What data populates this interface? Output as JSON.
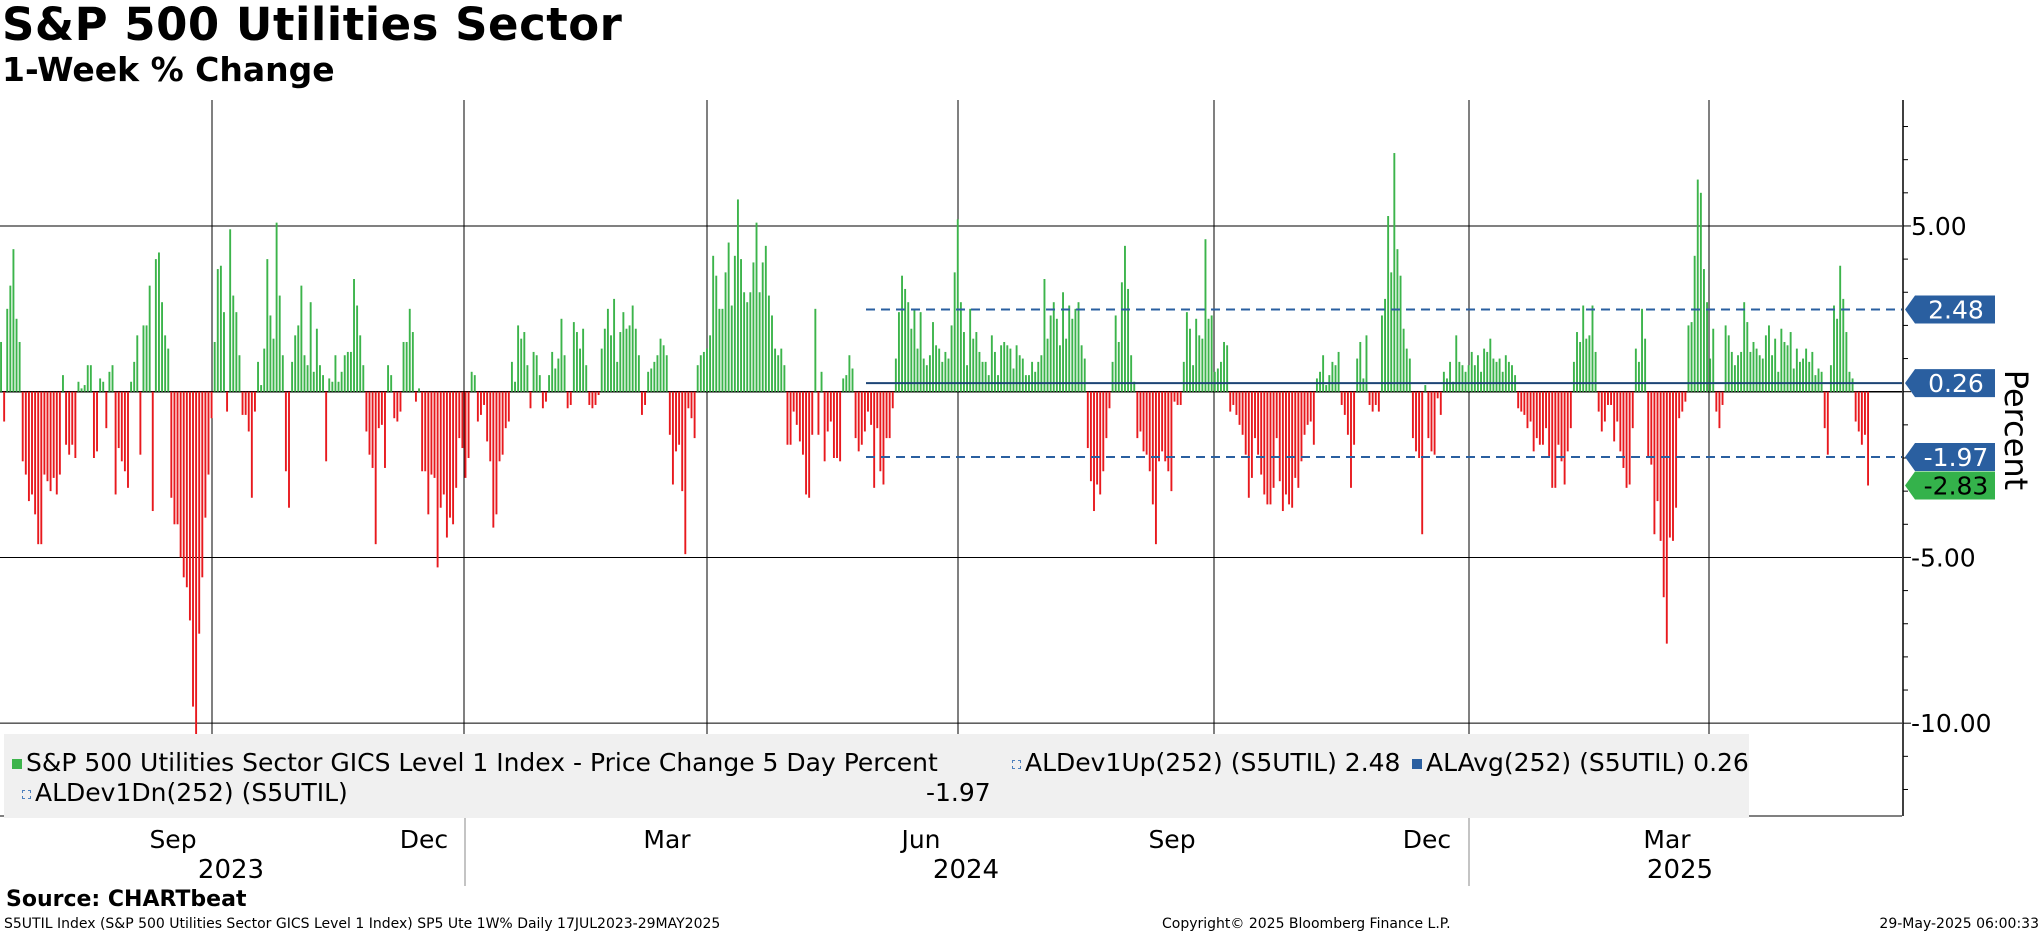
{
  "header": {
    "title": "S&P 500 Utilities Sector",
    "subtitle": "1-Week % Change"
  },
  "colors": {
    "up": "#3cb44b",
    "down": "#e8191e",
    "stat": "#2a5fa0",
    "latest": "#34b24b"
  },
  "chart_data": {
    "type": "bar",
    "title": "S&P 500 Utilities Sector",
    "subtitle": "1-Week % Change",
    "ylabel": "Percent",
    "ylim": [
      -12.8,
      8.8
    ],
    "yticks": [
      5,
      -5,
      -10
    ],
    "ytick_labels": [
      "5.00",
      "-5.00",
      "-10.00"
    ],
    "x_range": [
      "2023-07-17",
      "2025-05-29"
    ],
    "month_ticks": [
      "Sep",
      "Dec",
      "Mar",
      "Jun",
      "Sep",
      "Dec",
      "Mar"
    ],
    "year_labels": [
      "2023",
      "2024",
      "2025"
    ],
    "series": [
      {
        "name": "S&P 500 Utilities Sector GICS Level 1 Index - Price Change 5 Day Percent",
        "last": "-2.83",
        "values": [
          1.5,
          -0.9,
          2.5,
          3.2,
          4.3,
          2.2,
          1.5,
          -2.1,
          -2.5,
          -3.3,
          -3.1,
          -3.7,
          -4.6,
          -4.6,
          -2.5,
          -2.7,
          -3.0,
          -2.6,
          -3.1,
          -2.5,
          0.5,
          -1.6,
          -1.9,
          -1.6,
          -2.0,
          0.3,
          0.1,
          0.2,
          0.8,
          0.8,
          -2.0,
          -1.8,
          0.4,
          0.3,
          -1.1,
          0.6,
          0.8,
          -3.1,
          -1.7,
          -2.1,
          -2.4,
          -2.9,
          0.3,
          0.9,
          1.7,
          -1.9,
          2.0,
          2.0,
          3.2,
          -3.6,
          4.0,
          4.2,
          2.7,
          1.7,
          1.3,
          -3.2,
          -4.0,
          -4.0,
          -5.0,
          -5.6,
          -5.9,
          -6.9,
          -9.5,
          -11.0,
          -7.3,
          -5.6,
          -3.8,
          -2.5,
          -0.8,
          1.5,
          3.7,
          3.8,
          2.4,
          -0.6,
          4.9,
          2.9,
          2.4,
          1.1,
          -0.7,
          -0.7,
          -1.2,
          -3.2,
          -0.6,
          0.9,
          0.2,
          1.3,
          4.0,
          2.3,
          1.6,
          5.1,
          2.9,
          1.1,
          -2.4,
          -3.5,
          0.9,
          1.7,
          2.0,
          3.2,
          1.1,
          0.8,
          2.7,
          0.6,
          1.9,
          0.8,
          0.5,
          -2.1,
          0.4,
          0.3,
          1.1,
          0.3,
          0.6,
          1.1,
          1.2,
          1.2,
          3.4,
          2.6,
          1.7,
          0.8,
          -1.2,
          -1.9,
          -2.3,
          -4.6,
          -1.1,
          -1.0,
          -2.3,
          0.8,
          0.5,
          -0.8,
          -0.9,
          -0.6,
          1.5,
          1.5,
          2.5,
          1.8,
          -0.3,
          0.1,
          -2.4,
          -2.4,
          -3.7,
          -2.5,
          -2.6,
          -5.3,
          -3.5,
          -3.1,
          -4.4,
          -3.8,
          -4.0,
          -2.9,
          -1.4,
          -1.7,
          -2.6,
          -2.0,
          0.6,
          0.5,
          -0.9,
          -0.7,
          -0.4,
          -1.5,
          -2.1,
          -4.1,
          -3.7,
          -2.1,
          -1.9,
          -1.1,
          -0.9,
          0.9,
          0.3,
          2.0,
          1.6,
          1.8,
          0.8,
          -0.5,
          1.2,
          1.1,
          0.5,
          -0.5,
          -0.3,
          0.5,
          1.2,
          0.7,
          1.0,
          2.2,
          1.1,
          -0.5,
          -0.4,
          2.1,
          1.8,
          1.3,
          1.9,
          0.8,
          -0.4,
          -0.5,
          -0.4,
          -0.1,
          1.3,
          1.9,
          2.5,
          1.7,
          2.8,
          0.9,
          1.8,
          2.4,
          1.9,
          2.0,
          2.6,
          1.9,
          1.1,
          -0.7,
          -0.4,
          0.6,
          0.7,
          0.9,
          1.1,
          1.6,
          1.4,
          1.1,
          -1.3,
          -2.8,
          -1.8,
          -1.6,
          -3.0,
          -4.9,
          -0.5,
          -0.8,
          -1.4,
          0.8,
          1.1,
          1.2,
          1.3,
          1.7,
          4.1,
          3.5,
          2.5,
          2.5,
          3.6,
          4.5,
          2.6,
          4.1,
          5.8,
          4.0,
          3.0,
          2.7,
          3.0,
          3.9,
          5.1,
          3.0,
          3.9,
          4.4,
          2.9,
          2.3,
          1.3,
          1.1,
          1.3,
          0.8,
          -1.6,
          -1.6,
          -0.6,
          -1.0,
          -1.5,
          -1.9,
          -3.1,
          -3.2,
          -1.3,
          2.5,
          -1.3,
          0.6,
          -2.1,
          -1.2,
          -0.9,
          -2.0,
          -2.0,
          -2.1,
          0.4,
          0.5,
          1.1,
          0.7,
          -1.4,
          -1.8,
          -1.6,
          -1.2,
          -0.6,
          -1.0,
          -2.9,
          -1.1,
          -2.4,
          -2.8,
          -1.4,
          -1.4,
          -0.5,
          1.0,
          2.4,
          3.5,
          3.1,
          2.7,
          1.9,
          2.5,
          1.3,
          2.4,
          1.0,
          0.8,
          1.1,
          2.1,
          1.4,
          1.3,
          0.9,
          1.2,
          1.0,
          2.0,
          3.6,
          5.2,
          2.7,
          1.8,
          0.8,
          2.5,
          1.6,
          1.8,
          1.2,
          0.9,
          0.9,
          0.5,
          1.7,
          1.2,
          0.5,
          1.4,
          1.5,
          1.4,
          1.3,
          0.7,
          1.4,
          1.1,
          1.0,
          0.5,
          0.5,
          0.9,
          0.6,
          0.9,
          1.1,
          3.4,
          1.6,
          2.3,
          2.7,
          2.2,
          1.4,
          3.0,
          1.6,
          2.6,
          2.2,
          2.5,
          2.7,
          1.4,
          1.0,
          -1.7,
          -2.7,
          -3.6,
          -2.8,
          -3.1,
          -2.4,
          -1.4,
          -0.5,
          0.9,
          2.3,
          1.5,
          3.3,
          4.4,
          3.1,
          1.1,
          0.3,
          -1.4,
          -1.2,
          -1.8,
          -1.9,
          -2.4,
          -3.4,
          -4.6,
          -2.1,
          -1.8,
          -2.1,
          -2.4,
          -3.0,
          -0.3,
          -0.4,
          -0.4,
          0.9,
          2.4,
          1.9,
          0.8,
          2.2,
          1.7,
          1.6,
          4.6,
          2.2,
          2.3,
          0.6,
          0.7,
          0.9,
          1.5,
          1.4,
          -0.6,
          -0.4,
          -0.7,
          -1.0,
          -1.3,
          -1.9,
          -3.2,
          -2.6,
          -1.4,
          -1.9,
          -2.5,
          -3.1,
          -3.4,
          -3.4,
          -2.9,
          -1.4,
          -2.7,
          -3.6,
          -3.1,
          -3.4,
          -3.5,
          -2.6,
          -2.9,
          -2.1,
          -1.3,
          -1.0,
          -0.9,
          -1.6,
          0.4,
          0.6,
          1.1,
          0.2,
          0.5,
          0.9,
          0.8,
          1.2,
          -0.4,
          -0.7,
          -1.3,
          -2.9,
          -1.6,
          1.0,
          1.5,
          0.4,
          1.7,
          -0.4,
          -0.6,
          -0.4,
          -0.6,
          2.3,
          2.8,
          5.3,
          3.6,
          7.2,
          4.3,
          3.5,
          1.9,
          1.3,
          1.0,
          -1.4,
          -1.8,
          -2.0,
          -4.3,
          0.2,
          -1.4,
          -1.8,
          -1.9,
          -0.2,
          -0.7,
          0.6,
          0.4,
          0.9,
          0.3,
          1.7,
          0.9,
          0.8,
          0.6,
          0.8,
          1.2,
          0.8,
          1.1,
          0.6,
          1.3,
          1.2,
          1.6,
          1.0,
          0.9,
          1.0,
          0.6,
          1.1,
          0.9,
          0.8,
          0.5,
          -0.5,
          -0.6,
          -0.7,
          -1.1,
          -0.9,
          -1.8,
          -1.4,
          -1.6,
          -1.6,
          -1.1,
          -2.0,
          -2.9,
          -2.9,
          -1.6,
          -2.1,
          -2.8,
          -1.8,
          -1.1,
          0.9,
          1.8,
          1.5,
          2.6,
          1.6,
          1.7,
          2.6,
          1.2,
          -0.6,
          -1.2,
          -0.9,
          -0.4,
          -0.4,
          -1.5,
          -0.9,
          -1.8,
          -2.3,
          -2.9,
          -2.8,
          -1.1,
          1.3,
          0.9,
          2.5,
          1.6,
          -2.0,
          -2.2,
          -4.3,
          -3.3,
          -4.5,
          -6.2,
          -7.6,
          -4.4,
          -4.5,
          -3.5,
          -0.8,
          -0.6,
          -0.3,
          2.0,
          2.1,
          4.1,
          6.4,
          6.0,
          3.7,
          2.7,
          1.0,
          1.9,
          -0.6,
          -1.1,
          -0.4,
          2.0,
          1.7,
          1.2,
          0.8,
          1.1,
          1.2,
          2.7,
          2.1,
          1.2,
          1.5,
          1.3,
          1.1,
          1.0,
          1.7,
          2.0,
          1.1,
          1.6,
          0.6,
          1.9,
          1.5,
          1.4,
          1.8,
          0.7,
          1.3,
          0.9,
          1.0,
          1.3,
          0.9,
          1.2,
          0.5,
          0.7,
          0.6,
          -1.1,
          -1.9,
          0.8,
          2.6,
          2.2,
          3.8,
          2.8,
          1.8,
          0.6,
          0.4,
          -0.9,
          -1.2,
          -1.6,
          -1.3,
          -2.83
        ]
      },
      {
        "name": "ALDev1Up(252) (S5UTIL)",
        "value": 2.48,
        "label": "2.48"
      },
      {
        "name": "ALAvg(252) (S5UTIL)",
        "value": 0.26,
        "label": "0.26"
      },
      {
        "name": "ALDev1Dn(252) (S5UTIL)",
        "value": -1.97,
        "label": "-1.97"
      }
    ],
    "stats_start": "2024-05-03"
  },
  "legend": {
    "item1": "S&P 500 Utilities Sector GICS Level 1 Index - Price Change 5 Day Percent",
    "item2": "ALDev1Up(252) (S5UTIL) 2.48",
    "item3": "ALAvg(252) (S5UTIL) 0.26",
    "item4": "ALDev1Dn(252) (S5UTIL)",
    "item4_value": "-1.97"
  },
  "footer": {
    "source": "Source: CHARTbeat",
    "left": "S5UTIL Index (S&P 500 Utilities Sector GICS Level 1 Index) SP5 Ute 1W%  Daily 17JUL2023-29MAY2025",
    "center": "Copyright© 2025 Bloomberg Finance L.P.",
    "right": "29-May-2025 06:00:33"
  }
}
